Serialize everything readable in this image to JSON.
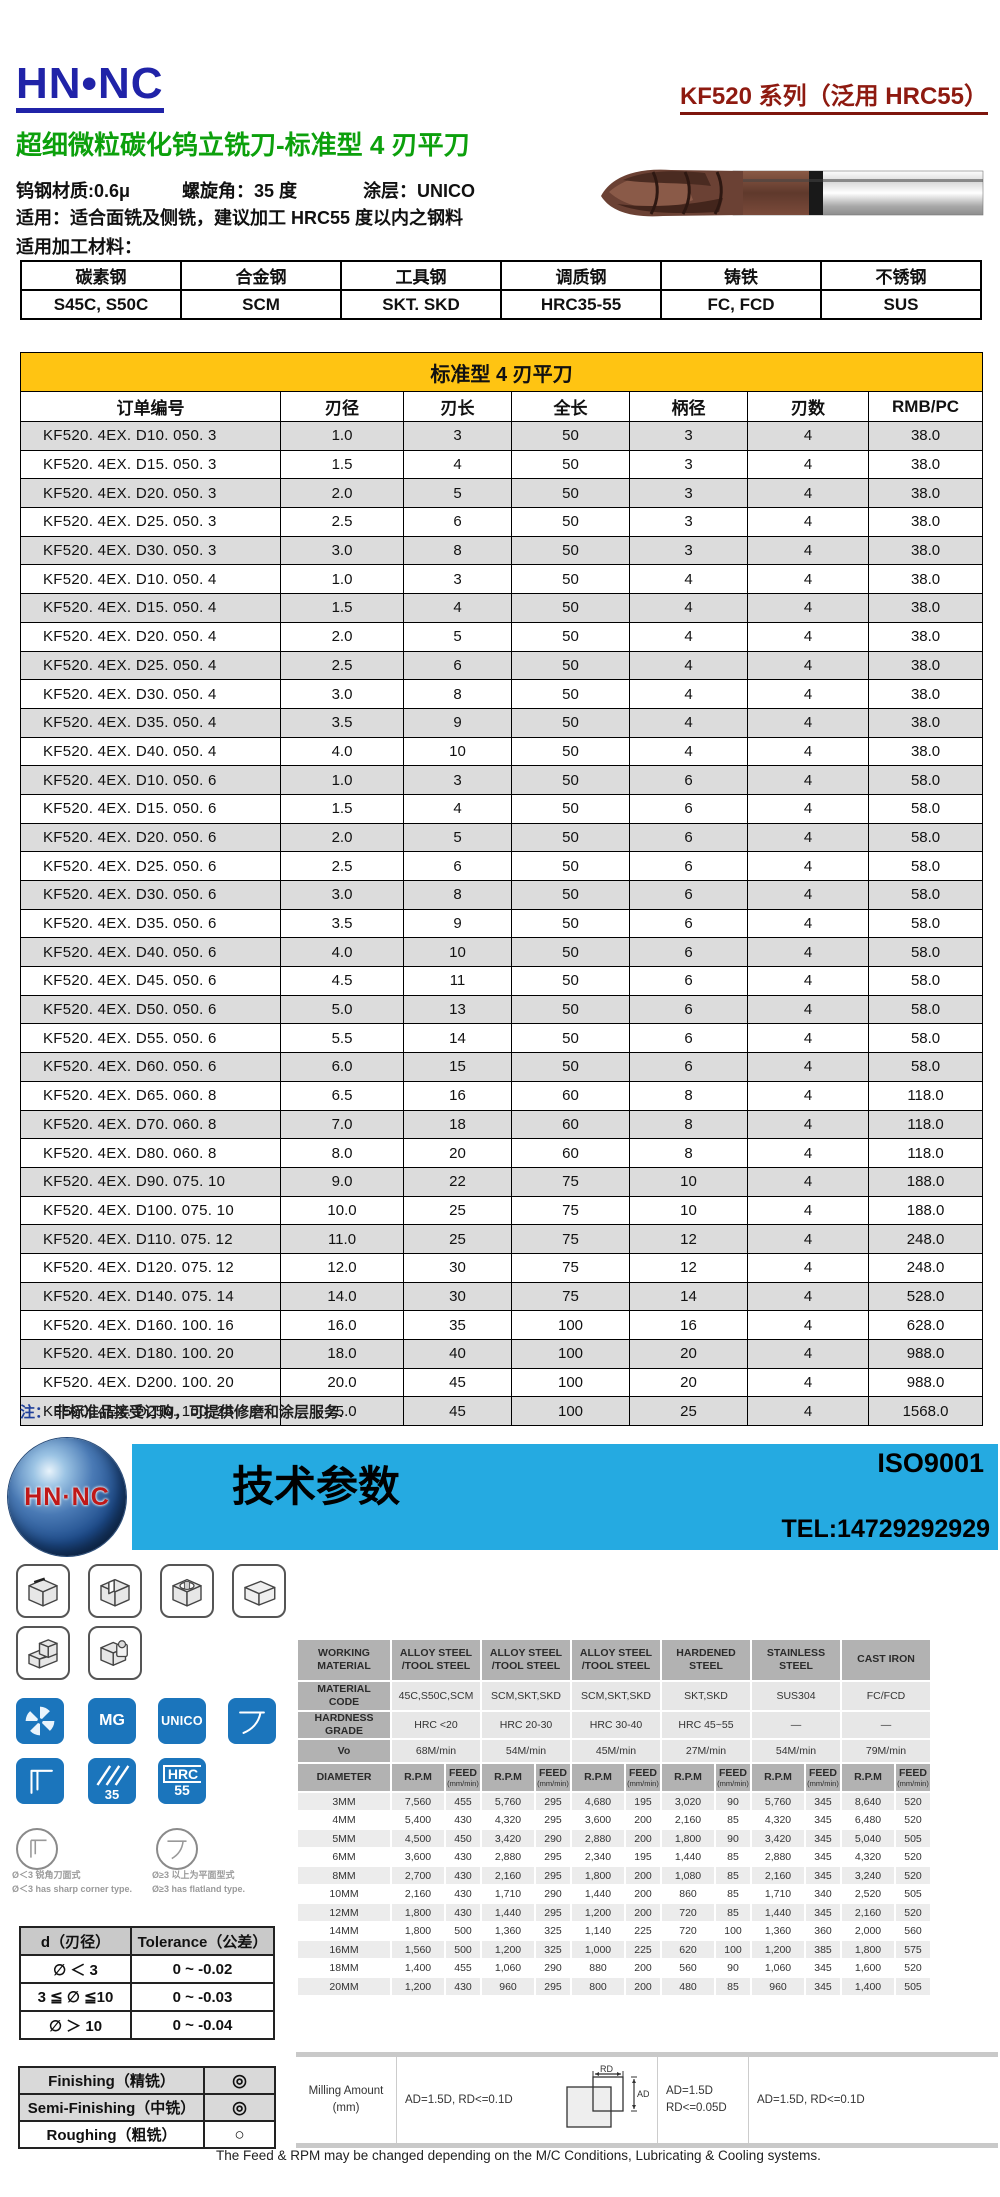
{
  "header": {
    "brand": "HN•NC",
    "series": "KF520 系列（泛用 HRC55）",
    "product_title": "超细微粒碳化钨立铣刀-标准型 4 刃平刀",
    "specs": [
      "钨钢材质:0.6μ",
      "螺旋角：35 度",
      "涂层：UNICO"
    ],
    "usage": "适用：适合面铣及侧铣，建议加工 HRC55 度以内之钢料",
    "materials_label": "适用加工材料："
  },
  "colors": {
    "brand_blue": "#2023A8",
    "series_red": "#8E1A10",
    "title_green": "#0CA00C",
    "band_yellow": "#FFC412",
    "row_gray": "#DCDCDC",
    "banner_cyan": "#25AAE1",
    "icon_blue": "#1B75BC"
  },
  "materials": {
    "columns": [
      {
        "type": "碳素钢",
        "grades": "S45C, S50C"
      },
      {
        "type": "合金钢",
        "grades": "SCM"
      },
      {
        "type": "工具钢",
        "grades": "SKT. SKD"
      },
      {
        "type": "调质钢",
        "grades": "HRC35-55"
      },
      {
        "type": "铸铁",
        "grades": "FC, FCD"
      },
      {
        "type": "不锈钢",
        "grades": "SUS"
      }
    ]
  },
  "main_table": {
    "band_title": "标准型 4 刃平刀",
    "columns": [
      "订单编号",
      "刃径",
      "刃长",
      "全长",
      "柄径",
      "刃数",
      "RMB/PC"
    ],
    "rows": [
      [
        "KF520. 4EX. D10. 050. 3",
        "1.0",
        "3",
        "50",
        "3",
        "4",
        "38.0"
      ],
      [
        "KF520. 4EX. D15. 050. 3",
        "1.5",
        "4",
        "50",
        "3",
        "4",
        "38.0"
      ],
      [
        "KF520. 4EX. D20. 050. 3",
        "2.0",
        "5",
        "50",
        "3",
        "4",
        "38.0"
      ],
      [
        "KF520. 4EX. D25. 050. 3",
        "2.5",
        "6",
        "50",
        "3",
        "4",
        "38.0"
      ],
      [
        "KF520. 4EX. D30. 050. 3",
        "3.0",
        "8",
        "50",
        "3",
        "4",
        "38.0"
      ],
      [
        "KF520. 4EX. D10. 050. 4",
        "1.0",
        "3",
        "50",
        "4",
        "4",
        "38.0"
      ],
      [
        "KF520. 4EX. D15. 050. 4",
        "1.5",
        "4",
        "50",
        "4",
        "4",
        "38.0"
      ],
      [
        "KF520. 4EX. D20. 050. 4",
        "2.0",
        "5",
        "50",
        "4",
        "4",
        "38.0"
      ],
      [
        "KF520. 4EX. D25. 050. 4",
        "2.5",
        "6",
        "50",
        "4",
        "4",
        "38.0"
      ],
      [
        "KF520. 4EX. D30. 050. 4",
        "3.0",
        "8",
        "50",
        "4",
        "4",
        "38.0"
      ],
      [
        "KF520. 4EX. D35. 050. 4",
        "3.5",
        "9",
        "50",
        "4",
        "4",
        "38.0"
      ],
      [
        "KF520. 4EX. D40. 050. 4",
        "4.0",
        "10",
        "50",
        "4",
        "4",
        "38.0"
      ],
      [
        "KF520. 4EX. D10. 050. 6",
        "1.0",
        "3",
        "50",
        "6",
        "4",
        "58.0"
      ],
      [
        "KF520. 4EX. D15. 050. 6",
        "1.5",
        "4",
        "50",
        "6",
        "4",
        "58.0"
      ],
      [
        "KF520. 4EX. D20. 050. 6",
        "2.0",
        "5",
        "50",
        "6",
        "4",
        "58.0"
      ],
      [
        "KF520. 4EX. D25. 050. 6",
        "2.5",
        "6",
        "50",
        "6",
        "4",
        "58.0"
      ],
      [
        "KF520. 4EX. D30. 050. 6",
        "3.0",
        "8",
        "50",
        "6",
        "4",
        "58.0"
      ],
      [
        "KF520. 4EX. D35. 050. 6",
        "3.5",
        "9",
        "50",
        "6",
        "4",
        "58.0"
      ],
      [
        "KF520. 4EX. D40. 050. 6",
        "4.0",
        "10",
        "50",
        "6",
        "4",
        "58.0"
      ],
      [
        "KF520. 4EX. D45. 050. 6",
        "4.5",
        "11",
        "50",
        "6",
        "4",
        "58.0"
      ],
      [
        "KF520. 4EX. D50. 050. 6",
        "5.0",
        "13",
        "50",
        "6",
        "4",
        "58.0"
      ],
      [
        "KF520. 4EX. D55. 050. 6",
        "5.5",
        "14",
        "50",
        "6",
        "4",
        "58.0"
      ],
      [
        "KF520. 4EX. D60. 050. 6",
        "6.0",
        "15",
        "50",
        "6",
        "4",
        "58.0"
      ],
      [
        "KF520. 4EX. D65. 060. 8",
        "6.5",
        "16",
        "60",
        "8",
        "4",
        "118.0"
      ],
      [
        "KF520. 4EX. D70. 060. 8",
        "7.0",
        "18",
        "60",
        "8",
        "4",
        "118.0"
      ],
      [
        "KF520. 4EX. D80. 060. 8",
        "8.0",
        "20",
        "60",
        "8",
        "4",
        "118.0"
      ],
      [
        "KF520. 4EX. D90. 075. 10",
        "9.0",
        "22",
        "75",
        "10",
        "4",
        "188.0"
      ],
      [
        "KF520. 4EX. D100. 075. 10",
        "10.0",
        "25",
        "75",
        "10",
        "4",
        "188.0"
      ],
      [
        "KF520. 4EX. D110. 075. 12",
        "11.0",
        "25",
        "75",
        "12",
        "4",
        "248.0"
      ],
      [
        "KF520. 4EX. D120. 075. 12",
        "12.0",
        "30",
        "75",
        "12",
        "4",
        "248.0"
      ],
      [
        "KF520. 4EX. D140. 075. 14",
        "14.0",
        "30",
        "75",
        "14",
        "4",
        "528.0"
      ],
      [
        "KF520. 4EX. D160. 100. 16",
        "16.0",
        "35",
        "100",
        "16",
        "4",
        "628.0"
      ],
      [
        "KF520. 4EX. D180. 100. 20",
        "18.0",
        "40",
        "100",
        "20",
        "4",
        "988.0"
      ],
      [
        "KF520. 4EX. D200. 100. 20",
        "20.0",
        "45",
        "100",
        "20",
        "4",
        "988.0"
      ],
      [
        "KF520. 4EX. D250. 100. 25",
        "25.0",
        "45",
        "100",
        "25",
        "4",
        "1568.0"
      ]
    ]
  },
  "note": {
    "prefix": "注：",
    "text": "非标准品接受订购，可提供修磨和涂层服务."
  },
  "banner": {
    "title": "技术参数",
    "iso": "ISO9001",
    "tel": "TEL:14729292929",
    "logo_text": "HN·NC"
  },
  "feature_icons": {
    "mg": "MG",
    "unico": "UNICO",
    "helix_angle": "35",
    "hrc_line1": "HRC",
    "hrc_line2": "55"
  },
  "circle_notes": [
    {
      "cn": "Ø＜3 锐角刀面式",
      "en": "Ø＜3 has sharp corner type."
    },
    {
      "cn": "Ø≥3 以上为平面型式",
      "en": "Ø≥3 has flatland type."
    }
  ],
  "tolerance": {
    "headers": [
      "d（刃径）",
      "Tolerance（公差）"
    ],
    "rows": [
      [
        "∅ ＜ 3",
        "0 ~ -0.02"
      ],
      [
        "3 ≦ ∅ ≦10",
        "0 ~ -0.03"
      ],
      [
        "∅ ＞ 10",
        "0 ~ -0.04"
      ]
    ]
  },
  "finishing": {
    "rows": [
      {
        "label": "Finishing（精铣）",
        "mark": "◎",
        "shade": true
      },
      {
        "label": "Semi-Finishing（中铣）",
        "mark": "◎",
        "shade": true
      },
      {
        "label": "Roughing（粗铣）",
        "mark": "○",
        "shade": false
      }
    ]
  },
  "tech_table": {
    "corner": [
      "WORKING",
      "MATERIAL"
    ],
    "row_labels": {
      "code": [
        "MATERIAL",
        "CODE"
      ],
      "hardness": [
        "HARDNESS",
        "GRADE"
      ],
      "vo": [
        "Vo"
      ],
      "diameter": [
        "DIAMETER"
      ],
      "rpm": "R.P.M",
      "feed": "FEED",
      "feed_unit": "(mm/min)"
    },
    "materials": [
      {
        "name": [
          "ALLOY STEEL",
          "/TOOL STEEL"
        ],
        "code": "45C,S50C,SCM",
        "hardness": "HRC <20",
        "vo": "68M/min"
      },
      {
        "name": [
          "ALLOY STEEL",
          "/TOOL STEEL"
        ],
        "code": "SCM,SKT,SKD",
        "hardness": "HRC 20-30",
        "vo": "54M/min"
      },
      {
        "name": [
          "ALLOY STEEL",
          "/TOOL STEEL"
        ],
        "code": "SCM,SKT,SKD",
        "hardness": "HRC 30-40",
        "vo": "45M/min"
      },
      {
        "name": [
          "HARDENED",
          "STEEL"
        ],
        "code": "SKT,SKD",
        "hardness": "HRC 45~55",
        "vo": "27M/min"
      },
      {
        "name": [
          "STAINLESS",
          "STEEL"
        ],
        "code": "SUS304",
        "hardness": "—",
        "vo": "54M/min"
      },
      {
        "name": [
          "CAST IRON"
        ],
        "code": "FC/FCD",
        "hardness": "—",
        "vo": "79M/min"
      }
    ],
    "speeds": [
      [
        "3MM",
        "7,560",
        "455",
        "5,760",
        "295",
        "4,680",
        "195",
        "3,020",
        "90",
        "5,760",
        "345",
        "8,640",
        "520"
      ],
      [
        "4MM",
        "5,400",
        "430",
        "4,320",
        "295",
        "3,600",
        "200",
        "2,160",
        "85",
        "4,320",
        "345",
        "6,480",
        "520"
      ],
      [
        "5MM",
        "4,500",
        "450",
        "3,420",
        "290",
        "2,880",
        "200",
        "1,800",
        "90",
        "3,420",
        "345",
        "5,040",
        "505"
      ],
      [
        "6MM",
        "3,600",
        "430",
        "2,880",
        "295",
        "2,340",
        "195",
        "1,440",
        "85",
        "2,880",
        "345",
        "4,320",
        "520"
      ],
      [
        "8MM",
        "2,700",
        "430",
        "2,160",
        "295",
        "1,800",
        "200",
        "1,080",
        "85",
        "2,160",
        "345",
        "3,240",
        "520"
      ],
      [
        "10MM",
        "2,160",
        "430",
        "1,710",
        "290",
        "1,440",
        "200",
        "860",
        "85",
        "1,710",
        "340",
        "2,520",
        "505"
      ],
      [
        "12MM",
        "1,800",
        "430",
        "1,440",
        "295",
        "1,200",
        "200",
        "720",
        "85",
        "1,440",
        "345",
        "2,160",
        "520"
      ],
      [
        "14MM",
        "1,800",
        "500",
        "1,360",
        "325",
        "1,140",
        "225",
        "720",
        "100",
        "1,360",
        "360",
        "2,000",
        "560"
      ],
      [
        "16MM",
        "1,560",
        "500",
        "1,200",
        "325",
        "1,000",
        "225",
        "620",
        "100",
        "1,200",
        "385",
        "1,800",
        "575"
      ],
      [
        "18MM",
        "1,400",
        "455",
        "1,060",
        "290",
        "880",
        "200",
        "560",
        "90",
        "1,060",
        "345",
        "1,600",
        "520"
      ],
      [
        "20MM",
        "1,200",
        "430",
        "960",
        "295",
        "800",
        "200",
        "480",
        "85",
        "960",
        "345",
        "1,400",
        "505"
      ]
    ]
  },
  "milling": {
    "label_line1": "Milling Amount",
    "label_line2": "(mm)",
    "cell1": "AD=1.5D, RD<=0.1D",
    "rd_label": "RD",
    "ad_label": "AD",
    "cell2_line1": "AD=1.5D",
    "cell2_line2": "RD<=0.05D",
    "cell3": "AD=1.5D, RD<=0.1D"
  },
  "footer": {
    "note": "The Feed & RPM may be changed depending on the M/C Conditions, Lubricating & Cooling systems."
  }
}
